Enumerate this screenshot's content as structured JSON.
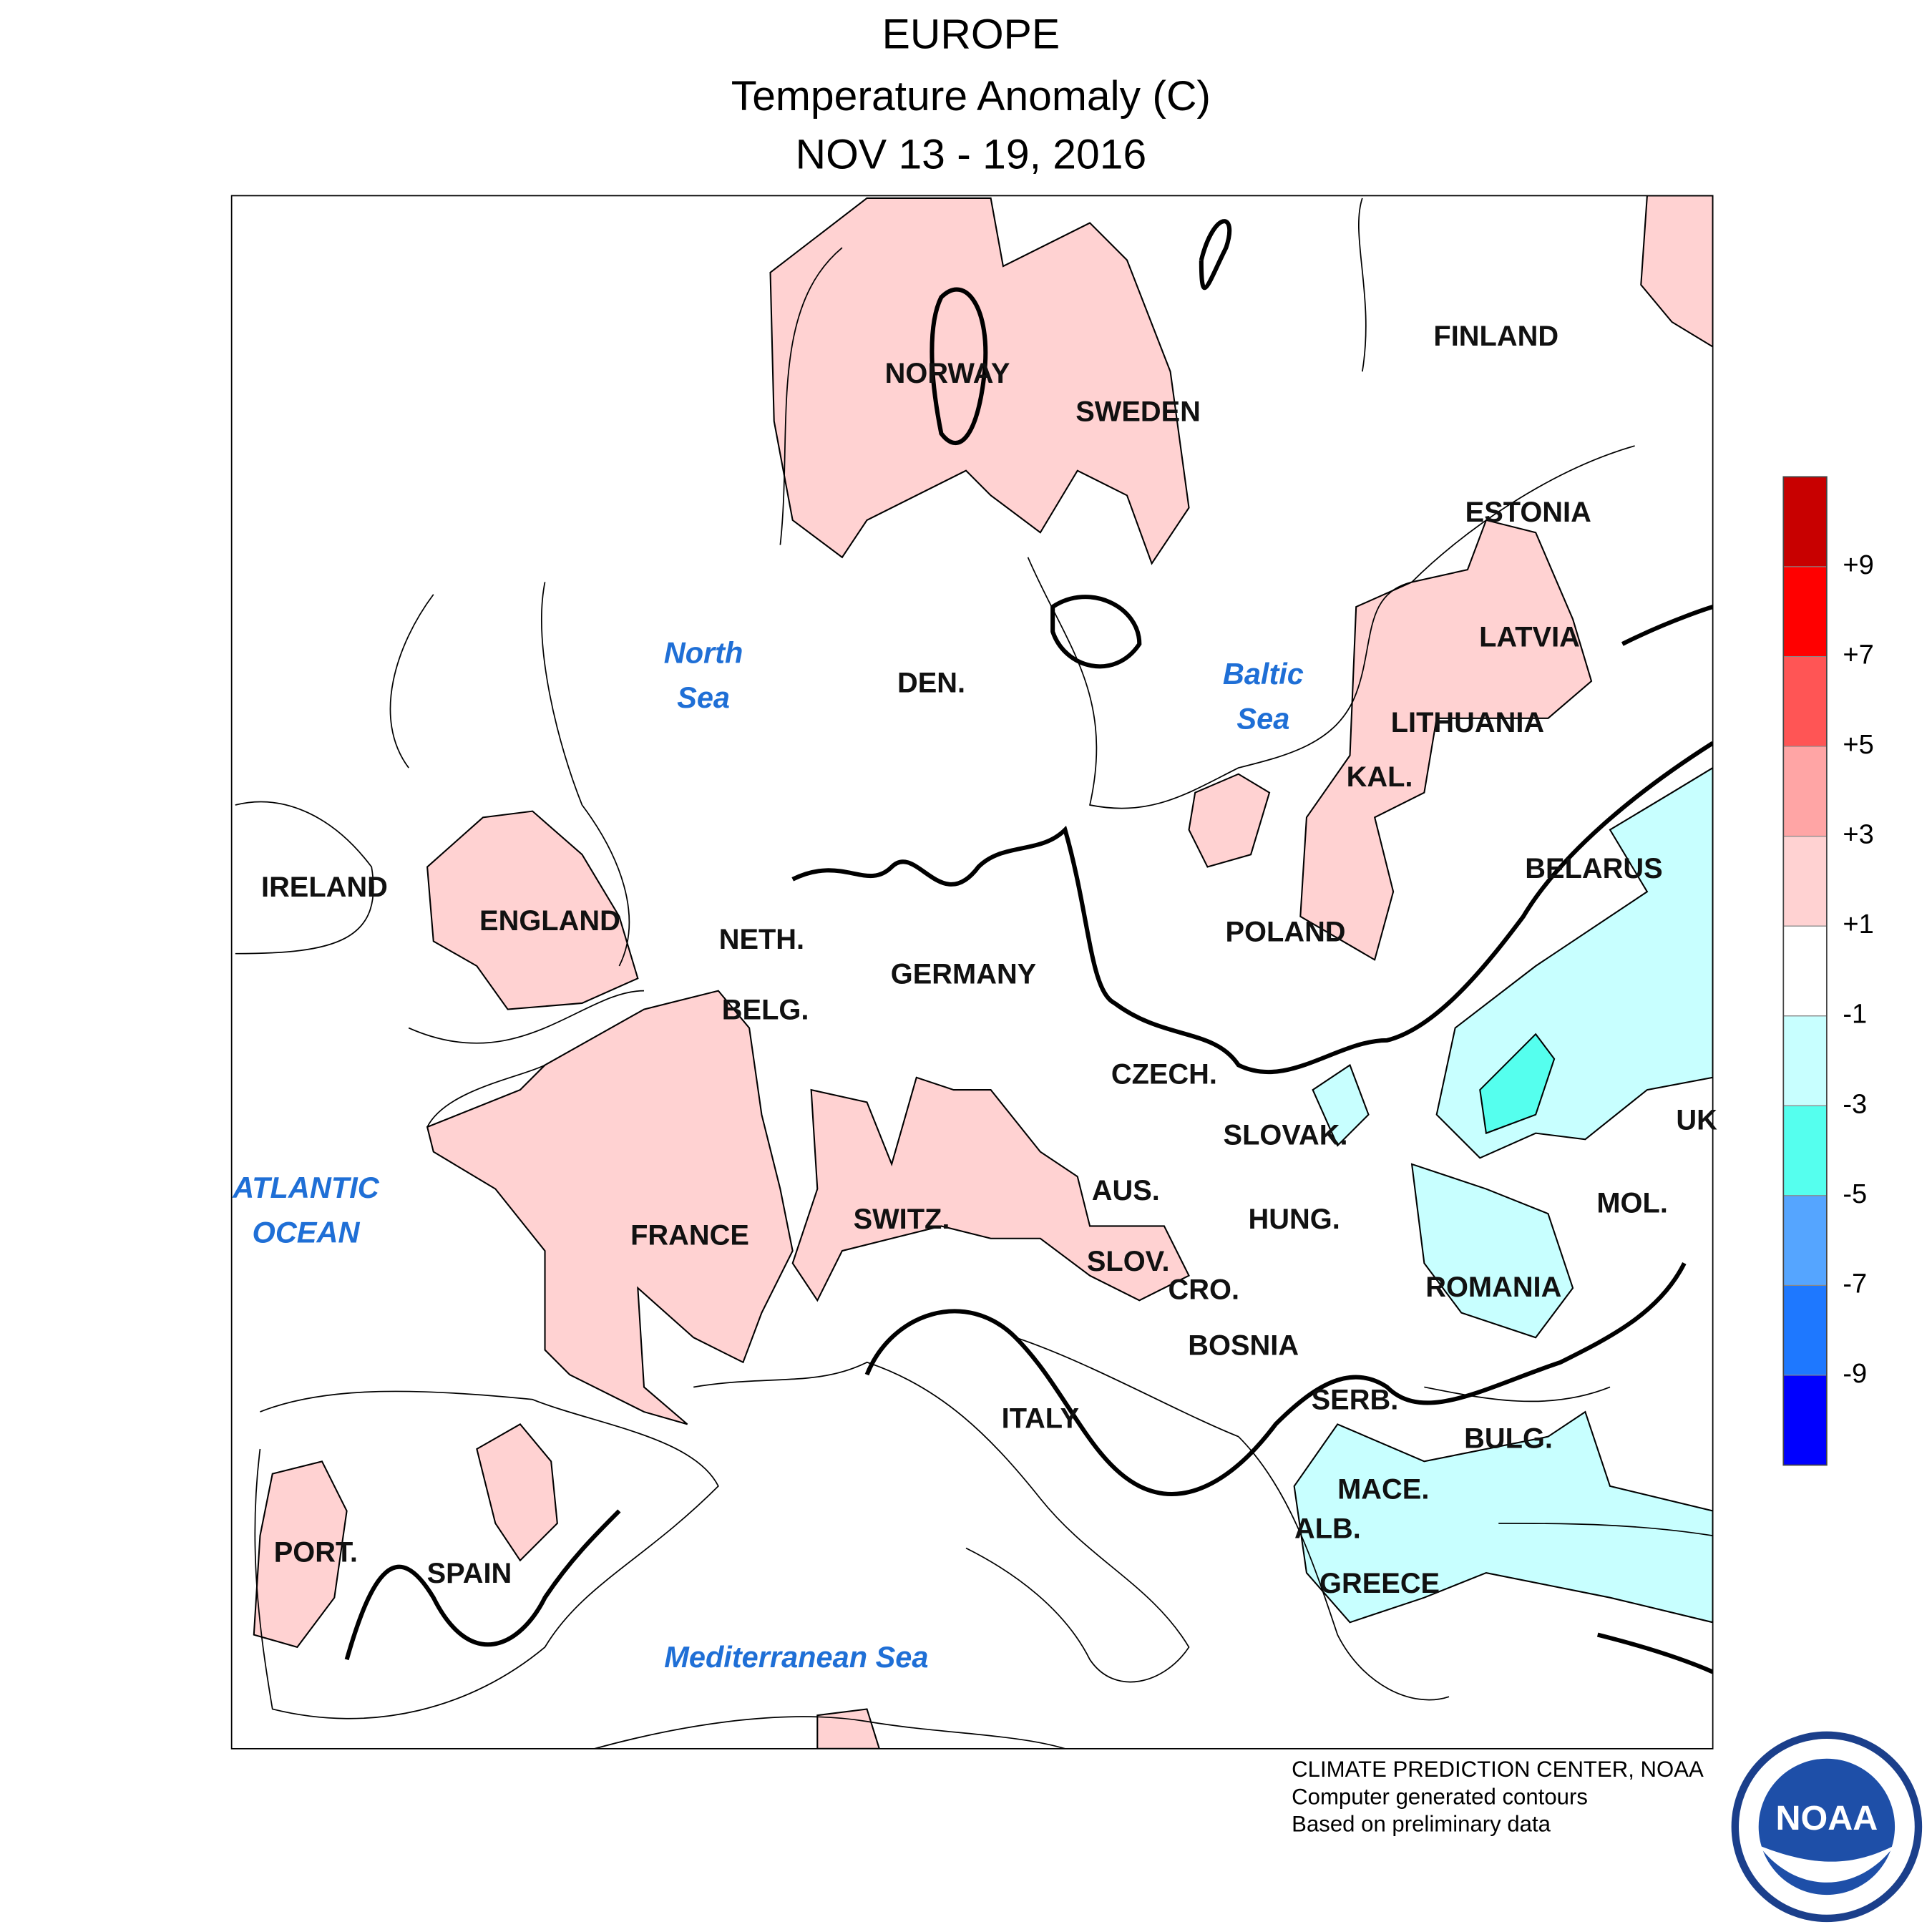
{
  "title": [
    "EUROPE",
    "Temperature Anomaly (C)",
    "NOV 13 - 19, 2016"
  ],
  "map": {
    "countries": [
      "FINLAND",
      "NORWAY",
      "SWEDEN",
      "ESTONIA",
      "LATVIA",
      "DEN.",
      "LITHUANIA",
      "KAL.",
      "IRELAND",
      "ENGLAND",
      "BELARUS",
      "POLAND",
      "NETH.",
      "GERMANY",
      "BELG.",
      "CZECH.",
      "SLOVAK.",
      "UK",
      "AUS.",
      "SWITZ.",
      "HUNG.",
      "MOL.",
      "FRANCE",
      "SLOV.",
      "CRO.",
      "ROMANIA",
      "BOSNIA",
      "ITALY",
      "SERB.",
      "BULG.",
      "MACE.",
      "ALB.",
      "PORT.",
      "SPAIN",
      "GREECE"
    ],
    "seas": [
      [
        "North",
        "Sea"
      ],
      [
        "Baltic",
        "Sea"
      ],
      [
        "ATLANTIC",
        "OCEAN"
      ],
      [
        "Mediterranean Sea"
      ]
    ]
  },
  "legend": {
    "colors": [
      "#0000ff",
      "#1e78ff",
      "#55a5ff",
      "#55ffee",
      "#c8ffff",
      "#ffffff",
      "#ffd2d2",
      "#ffa5a5",
      "#ff5555",
      "#ff0000",
      "#c80000"
    ],
    "ticks": [
      {
        "value": -9,
        "label": "-9"
      },
      {
        "value": -7,
        "label": "-7"
      },
      {
        "value": -5,
        "label": "-5"
      },
      {
        "value": -3,
        "label": "-3"
      },
      {
        "value": -1,
        "label": "-1"
      },
      {
        "value": 1,
        "label": "+1"
      },
      {
        "value": 3,
        "label": "+3"
      },
      {
        "value": 5,
        "label": "+5"
      },
      {
        "value": 7,
        "label": "+7"
      },
      {
        "value": 9,
        "label": "+9"
      }
    ]
  },
  "footer": [
    "CLIMATE PREDICTION CENTER, NOAA",
    "Computer generated contours",
    "Based on preliminary data"
  ],
  "logo": "NOAA"
}
